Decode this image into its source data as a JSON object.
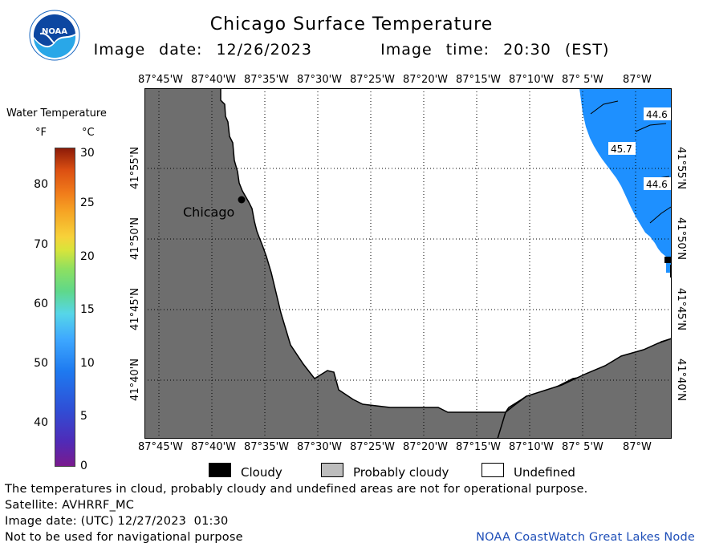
{
  "header": {
    "title": "Chicago Surface Temperature",
    "image_date": "Image date: 12/26/2023",
    "image_time": "Image time: 20:30 (EST)",
    "logo_text": "NOAA"
  },
  "colorbar": {
    "title": "Water Temperature",
    "unit_f": "°F",
    "unit_c": "°C",
    "ticks_f": [
      "80",
      "70",
      "60",
      "50",
      "40"
    ],
    "ticks_c": [
      "30",
      "25",
      "20",
      "15",
      "10",
      "5",
      "0"
    ]
  },
  "map": {
    "lon_labels": [
      "87°45'W",
      "87°40'W",
      "87°35'W",
      "87°30'W",
      "87°25'W",
      "87°20'W",
      "87°15'W",
      "87°10'W",
      "87° 5'W",
      "87°W"
    ],
    "lat_labels": [
      "41°55'N",
      "41°50'N",
      "41°45'N",
      "41°40'N"
    ],
    "city": "Chicago",
    "temperature_labels": [
      "44.6",
      "45.7",
      "44.6"
    ],
    "colors": {
      "land": "#6e6e6e",
      "water": "#1e90ff",
      "undefined": "#ffffff",
      "cloudy": "#000000",
      "probably_cloudy": "#bdbdbd"
    }
  },
  "legend": {
    "cloudy": "Cloudy",
    "probably_cloudy": "Probably cloudy",
    "undefined": "Undefined"
  },
  "footer": {
    "disclaimer": "The temperatures in cloud, probably cloudy and undefined areas are not for operational purpose.",
    "satellite": "Satellite: AVHRRF_MC",
    "utc_date": "Image date: (UTC) 12/27/2023  01:30",
    "nav_warning": "Not to be used for navigational purpose",
    "credit": "NOAA CoastWatch Great Lakes Node"
  }
}
